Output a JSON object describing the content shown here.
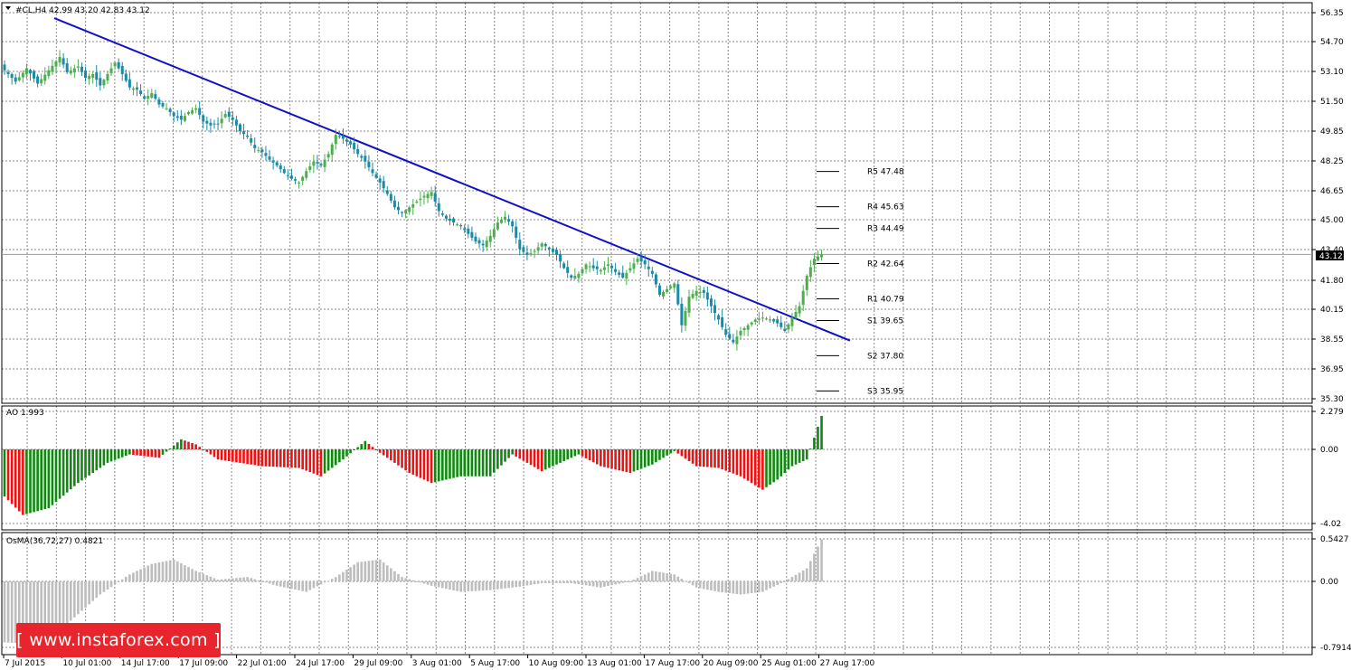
{
  "main_header": {
    "symbol_info": "#CL,H4  42.99 43.20 42.83 43.12",
    "current_price": "43.12"
  },
  "ao_header": {
    "label": "AO 1.993"
  },
  "osma_header": {
    "label": "OsMA(36,72,27) 0.4821"
  },
  "watermark": {
    "text": "[ www.instaforex.com ]"
  },
  "colors": {
    "bull": "#4cae4c",
    "bear": "#1a8aa6",
    "trendline": "#1010c8",
    "ao_up": "#118811",
    "ao_down": "#ee1111",
    "osma": "#bdbdbd",
    "logo": "#e8252d"
  },
  "chart_data": [
    {
      "type": "candlestick",
      "name": "price",
      "y_axis_ticks": [
        "56.35",
        "54.70",
        "53.10",
        "51.50",
        "49.85",
        "48.25",
        "46.65",
        "45.00",
        "43.40",
        "41.80",
        "40.15",
        "38.55",
        "36.95",
        "35.30"
      ],
      "ylim": [
        35.3,
        56.35
      ],
      "x_tick_labels": [
        "7 Jul 2015",
        "10 Jul 01:00",
        "14 Jul 17:00",
        "17 Jul 09:00",
        "22 Jul 01:00",
        "24 Jul 17:00",
        "29 Jul 09:00",
        "3 Aug 01:00",
        "5 Aug 17:00",
        "10 Aug 09:00",
        "13 Aug 01:00",
        "17 Aug 17:00",
        "20 Aug 09:00",
        "25 Aug 01:00",
        "27 Aug 17:00"
      ],
      "last_close": 43.12,
      "close_path": [
        [
          0,
          52.8
        ],
        [
          3,
          52.2
        ],
        [
          6,
          52.9
        ],
        [
          9,
          52.1
        ],
        [
          12,
          52.8
        ],
        [
          15,
          53.5
        ],
        [
          17,
          52.7
        ],
        [
          20,
          53.0
        ],
        [
          22,
          52.4
        ],
        [
          24,
          52.6
        ],
        [
          26,
          52.0
        ],
        [
          28,
          52.6
        ],
        [
          30,
          53.2
        ],
        [
          32,
          52.6
        ],
        [
          34,
          51.9
        ],
        [
          36,
          51.8
        ],
        [
          38,
          51.3
        ],
        [
          40,
          51.6
        ],
        [
          42,
          51.0
        ],
        [
          44,
          50.8
        ],
        [
          46,
          50.4
        ],
        [
          48,
          50.2
        ],
        [
          50,
          50.6
        ],
        [
          52,
          50.8
        ],
        [
          54,
          50.1
        ],
        [
          56,
          49.9
        ],
        [
          58,
          50.0
        ],
        [
          60,
          50.5
        ],
        [
          62,
          50.2
        ],
        [
          64,
          49.6
        ],
        [
          66,
          49.3
        ],
        [
          68,
          48.7
        ],
        [
          70,
          48.5
        ],
        [
          72,
          48.1
        ],
        [
          74,
          47.8
        ],
        [
          76,
          47.4
        ],
        [
          78,
          47.1
        ],
        [
          80,
          46.9
        ],
        [
          82,
          47.5
        ],
        [
          84,
          48.0
        ],
        [
          86,
          47.8
        ],
        [
          88,
          48.4
        ],
        [
          90,
          49.4
        ],
        [
          92,
          49.2
        ],
        [
          94,
          48.9
        ],
        [
          96,
          48.4
        ],
        [
          98,
          48.0
        ],
        [
          100,
          47.4
        ],
        [
          102,
          46.9
        ],
        [
          104,
          46.3
        ],
        [
          106,
          45.6
        ],
        [
          108,
          45.3
        ],
        [
          110,
          45.6
        ],
        [
          112,
          45.9
        ],
        [
          114,
          46.2
        ],
        [
          116,
          46.4
        ],
        [
          118,
          45.4
        ],
        [
          120,
          45.0
        ],
        [
          122,
          44.8
        ],
        [
          124,
          44.6
        ],
        [
          126,
          44.2
        ],
        [
          128,
          43.8
        ],
        [
          130,
          43.6
        ],
        [
          132,
          44.1
        ],
        [
          134,
          44.8
        ],
        [
          136,
          45.1
        ],
        [
          138,
          44.6
        ],
        [
          140,
          43.4
        ],
        [
          142,
          43.1
        ],
        [
          144,
          43.3
        ],
        [
          146,
          43.7
        ],
        [
          148,
          43.4
        ],
        [
          150,
          43.1
        ],
        [
          152,
          42.4
        ],
        [
          154,
          41.9
        ],
        [
          156,
          42.1
        ],
        [
          158,
          42.6
        ],
        [
          160,
          42.4
        ],
        [
          162,
          42.3
        ],
        [
          164,
          42.6
        ],
        [
          166,
          42.2
        ],
        [
          168,
          41.9
        ],
        [
          170,
          42.4
        ],
        [
          172,
          42.9
        ],
        [
          174,
          42.6
        ],
        [
          176,
          42.1
        ],
        [
          178,
          41.0
        ],
        [
          180,
          41.3
        ],
        [
          182,
          41.6
        ],
        [
          184,
          39.4
        ],
        [
          186,
          40.9
        ],
        [
          188,
          41.2
        ],
        [
          190,
          41.1
        ],
        [
          192,
          40.4
        ],
        [
          194,
          39.7
        ],
        [
          196,
          38.9
        ],
        [
          198,
          38.5
        ],
        [
          200,
          39.1
        ],
        [
          202,
          39.4
        ],
        [
          204,
          39.7
        ],
        [
          206,
          39.8
        ],
        [
          208,
          39.7
        ],
        [
          210,
          39.5
        ],
        [
          212,
          39.1
        ],
        [
          214,
          39.8
        ],
        [
          216,
          40.4
        ],
        [
          218,
          42.0
        ],
        [
          220,
          42.9
        ],
        [
          222,
          43.12
        ]
      ],
      "trendline": {
        "from": {
          "x": "7 Jul 2015",
          "y": 56.6
        },
        "to": {
          "x": "27 Aug 17:00",
          "y": 39.2
        }
      },
      "pivot_levels": [
        {
          "label": "R5",
          "value": 47.48,
          "text": "R5 47.48"
        },
        {
          "label": "R4",
          "value": 45.63,
          "text": "R4 45.63"
        },
        {
          "label": "R3",
          "value": 44.49,
          "text": "R3 44.49"
        },
        {
          "label": "R2",
          "value": 42.64,
          "text": "R2 42.64"
        },
        {
          "label": "R1",
          "value": 40.79,
          "text": "R1 40.79"
        },
        {
          "label": "S1",
          "value": 39.65,
          "text": "S1 39.65"
        },
        {
          "label": "S2",
          "value": 37.8,
          "text": "S2 37.80"
        },
        {
          "label": "S3",
          "value": 35.95,
          "text": "S3 35.95"
        }
      ]
    },
    {
      "type": "bar",
      "name": "Awesome Oscillator",
      "y_axis_ticks": [
        "2.279",
        "0.00",
        "-4.02"
      ],
      "ylim": [
        -4.02,
        2.279
      ],
      "last_value": 1.993,
      "key_points": [
        [
          0,
          -2.8
        ],
        [
          5,
          -3.9
        ],
        [
          12,
          -3.5
        ],
        [
          20,
          -2.0
        ],
        [
          28,
          -0.8
        ],
        [
          34,
          -0.3
        ],
        [
          42,
          -0.5
        ],
        [
          48,
          0.6
        ],
        [
          52,
          0.3
        ],
        [
          58,
          -0.6
        ],
        [
          70,
          -1.0
        ],
        [
          80,
          -1.1
        ],
        [
          86,
          -1.6
        ],
        [
          92,
          -0.6
        ],
        [
          98,
          0.5
        ],
        [
          102,
          -0.2
        ],
        [
          110,
          -1.4
        ],
        [
          116,
          -2.0
        ],
        [
          124,
          -1.6
        ],
        [
          132,
          -1.6
        ],
        [
          138,
          -0.3
        ],
        [
          146,
          -1.3
        ],
        [
          150,
          -0.9
        ],
        [
          156,
          -0.3
        ],
        [
          162,
          -1.0
        ],
        [
          170,
          -1.4
        ],
        [
          176,
          -0.9
        ],
        [
          182,
          -0.1
        ],
        [
          188,
          -1.0
        ],
        [
          194,
          -1.1
        ],
        [
          200,
          -1.6
        ],
        [
          206,
          -2.4
        ],
        [
          210,
          -1.8
        ],
        [
          214,
          -1.0
        ],
        [
          218,
          -0.6
        ],
        [
          222,
          1.993
        ]
      ]
    },
    {
      "type": "bar",
      "name": "OsMA",
      "y_axis_ticks": [
        "0.5427",
        "0.00",
        "-0.7914"
      ],
      "ylim": [
        -0.7914,
        0.5427
      ],
      "last_value": 0.4821,
      "key_points": [
        [
          0,
          -0.7
        ],
        [
          10,
          -0.72
        ],
        [
          18,
          -0.45
        ],
        [
          26,
          -0.15
        ],
        [
          34,
          0.08
        ],
        [
          40,
          0.2
        ],
        [
          46,
          0.25
        ],
        [
          52,
          0.12
        ],
        [
          58,
          0.02
        ],
        [
          66,
          0.05
        ],
        [
          74,
          -0.05
        ],
        [
          82,
          -0.12
        ],
        [
          90,
          0.05
        ],
        [
          96,
          0.22
        ],
        [
          102,
          0.25
        ],
        [
          108,
          0.05
        ],
        [
          116,
          -0.05
        ],
        [
          124,
          -0.12
        ],
        [
          132,
          -0.1
        ],
        [
          140,
          -0.06
        ],
        [
          146,
          -0.02
        ],
        [
          154,
          -0.02
        ],
        [
          162,
          -0.07
        ],
        [
          170,
          0.0
        ],
        [
          176,
          0.12
        ],
        [
          182,
          0.08
        ],
        [
          188,
          -0.07
        ],
        [
          194,
          -0.12
        ],
        [
          200,
          -0.15
        ],
        [
          206,
          -0.12
        ],
        [
          212,
          0.0
        ],
        [
          218,
          0.15
        ],
        [
          222,
          0.4821
        ]
      ]
    }
  ]
}
